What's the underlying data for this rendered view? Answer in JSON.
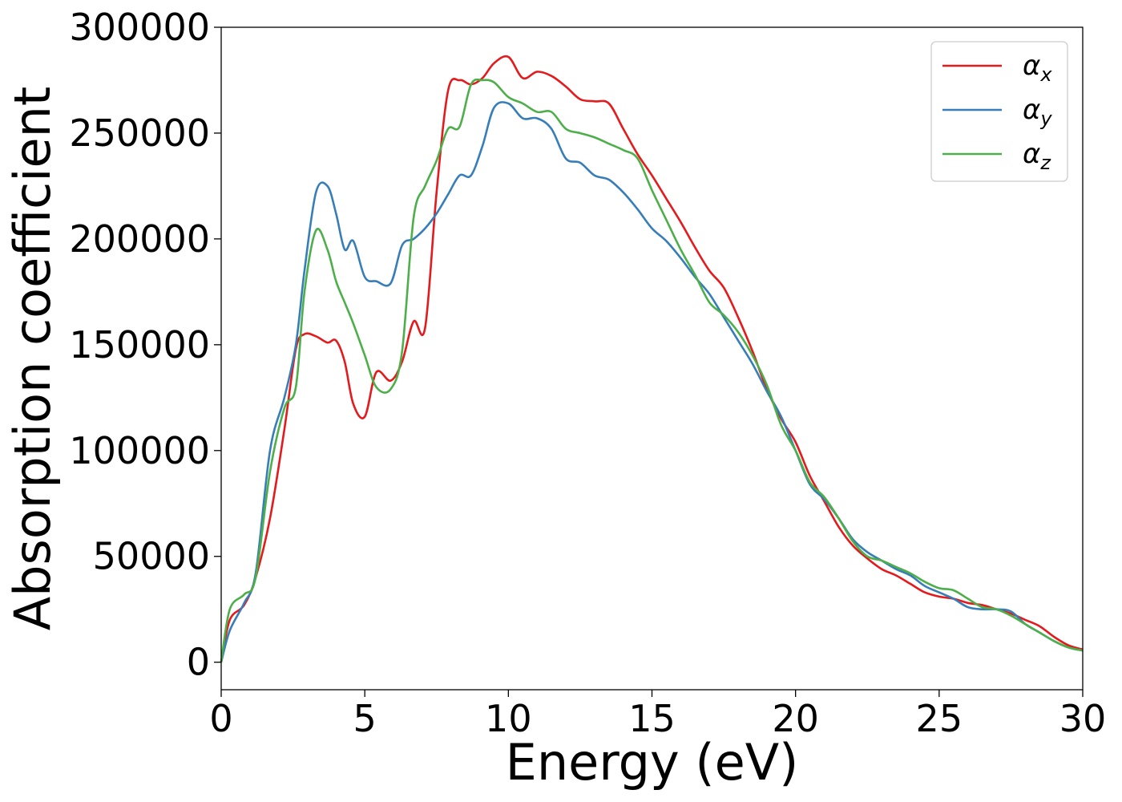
{
  "chart_data": {
    "type": "line",
    "title": "",
    "xlabel": "Energy (eV)",
    "ylabel": "Absorption coefficient",
    "xlim": [
      0,
      30
    ],
    "ylim": [
      -13000,
      300000
    ],
    "xticks": [
      0,
      5,
      10,
      15,
      20,
      25,
      30
    ],
    "xtick_labels": [
      "0",
      "5",
      "10",
      "15",
      "20",
      "25",
      "30"
    ],
    "yticks": [
      0,
      50000,
      100000,
      150000,
      200000,
      250000,
      300000
    ],
    "ytick_labels": [
      "0",
      "50000",
      "100000",
      "150000",
      "200000",
      "250000",
      "300000"
    ],
    "grid": false,
    "legend_position": "top-right",
    "series": [
      {
        "name": "α_x",
        "legend_symbol": "α",
        "legend_subscript": "x",
        "color": "#e41a1c",
        "x": [
          0,
          0.3,
          0.8,
          1.2,
          1.7,
          2.2,
          2.6,
          2.9,
          3.3,
          3.7,
          4.0,
          4.3,
          4.6,
          5.0,
          5.4,
          5.9,
          6.3,
          6.7,
          7.1,
          7.5,
          7.9,
          8.3,
          8.7,
          9.1,
          9.5,
          10.0,
          10.5,
          11.0,
          11.5,
          12.0,
          12.5,
          13.0,
          13.5,
          14.0,
          14.5,
          15.0,
          15.5,
          16.0,
          16.5,
          17.0,
          17.5,
          18.0,
          18.5,
          19.0,
          19.5,
          20.0,
          20.5,
          21.0,
          21.5,
          22.0,
          22.5,
          23.0,
          23.5,
          24.0,
          24.5,
          25.0,
          25.5,
          26.0,
          26.5,
          27.0,
          27.5,
          28.0,
          28.5,
          29.0,
          29.5,
          30.0
        ],
        "values": [
          0,
          20000,
          27000,
          40000,
          68000,
          110000,
          148000,
          155000,
          154000,
          151000,
          152000,
          142000,
          122000,
          116000,
          137000,
          133000,
          142000,
          161000,
          158000,
          222000,
          270000,
          275000,
          273000,
          276000,
          283000,
          286000,
          276000,
          279000,
          277000,
          272000,
          266000,
          265000,
          264000,
          252000,
          240000,
          230000,
          219000,
          208000,
          196000,
          185000,
          177000,
          163000,
          147000,
          129000,
          115000,
          104000,
          88000,
          76000,
          64000,
          55000,
          49000,
          44000,
          41000,
          37000,
          33000,
          31000,
          30000,
          28000,
          27000,
          25000,
          23000,
          20000,
          17000,
          12000,
          8000,
          6000
        ]
      },
      {
        "name": "α_y",
        "legend_symbol": "α",
        "legend_subscript": "y",
        "color": "#377eb8",
        "x": [
          0,
          0.3,
          0.8,
          1.2,
          1.7,
          2.2,
          2.6,
          2.9,
          3.3,
          3.7,
          4.0,
          4.3,
          4.6,
          5.0,
          5.4,
          5.9,
          6.3,
          6.7,
          7.1,
          7.5,
          7.9,
          8.3,
          8.7,
          9.1,
          9.5,
          10.0,
          10.5,
          11.0,
          11.5,
          12.0,
          12.5,
          13.0,
          13.5,
          14.0,
          14.5,
          15.0,
          15.5,
          16.0,
          16.5,
          17.0,
          17.5,
          18.0,
          18.5,
          19.0,
          19.5,
          20.0,
          20.5,
          21.0,
          21.5,
          22.0,
          22.5,
          23.0,
          23.5,
          24.0,
          24.5,
          25.0,
          25.5,
          26.0,
          26.5,
          27.0,
          27.5,
          28.0,
          28.5,
          29.0,
          29.5,
          30.0
        ],
        "values": [
          0,
          15000,
          28000,
          42000,
          100000,
          125000,
          150000,
          185000,
          222000,
          225000,
          212000,
          195000,
          199000,
          182000,
          180000,
          179000,
          197000,
          200000,
          205000,
          212000,
          221000,
          230000,
          230000,
          244000,
          262000,
          264000,
          257000,
          257000,
          252000,
          238000,
          236000,
          230000,
          228000,
          222000,
          214000,
          205000,
          199000,
          191000,
          182000,
          174000,
          163000,
          152000,
          141000,
          128000,
          116000,
          100000,
          84000,
          77000,
          68000,
          58000,
          52000,
          48000,
          44000,
          41000,
          36000,
          33000,
          30000,
          26000,
          25000,
          25000,
          24000,
          18000,
          14000,
          10000,
          7000,
          5500
        ]
      },
      {
        "name": "α_z",
        "legend_symbol": "α",
        "legend_subscript": "z",
        "color": "#4daf4a",
        "x": [
          0,
          0.3,
          0.8,
          1.2,
          1.7,
          2.2,
          2.6,
          2.9,
          3.3,
          3.7,
          4.0,
          4.3,
          4.6,
          5.0,
          5.4,
          5.9,
          6.3,
          6.7,
          7.1,
          7.5,
          7.9,
          8.3,
          8.7,
          9.1,
          9.5,
          10.0,
          10.5,
          11.0,
          11.5,
          12.0,
          12.5,
          13.0,
          13.5,
          14.0,
          14.5,
          15.0,
          15.5,
          16.0,
          16.5,
          17.0,
          17.5,
          18.0,
          18.5,
          19.0,
          19.5,
          20.0,
          20.5,
          21.0,
          21.5,
          22.0,
          22.5,
          23.0,
          23.5,
          24.0,
          24.5,
          25.0,
          25.5,
          26.0,
          26.5,
          27.0,
          27.5,
          28.0,
          28.5,
          29.0,
          29.5,
          30.0
        ],
        "values": [
          0,
          25000,
          32000,
          40000,
          90000,
          120000,
          130000,
          175000,
          204000,
          195000,
          180000,
          170000,
          160000,
          145000,
          130000,
          129000,
          147000,
          210000,
          225000,
          237000,
          252000,
          253000,
          273000,
          275000,
          274000,
          267000,
          264000,
          260000,
          260000,
          252000,
          250000,
          248000,
          245000,
          242000,
          238000,
          223000,
          209000,
          195000,
          183000,
          170000,
          164000,
          156000,
          145000,
          131000,
          112000,
          100000,
          85000,
          78000,
          68000,
          57000,
          50000,
          48000,
          45000,
          42000,
          38000,
          35000,
          34000,
          30000,
          26000,
          25000,
          22000,
          18000,
          14000,
          10000,
          7000,
          5500
        ]
      }
    ]
  }
}
